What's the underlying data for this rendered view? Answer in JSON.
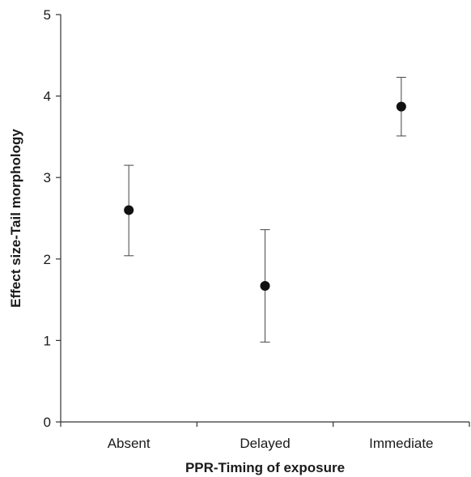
{
  "chart_data": {
    "type": "scatter",
    "title": "",
    "xlabel": "PPR-Timing of exposure",
    "ylabel": "Effect size-Tail morphology",
    "categories": [
      "Absent",
      "Delayed",
      "Immediate"
    ],
    "series": [
      {
        "values": [
          2.6,
          1.67,
          3.87
        ],
        "err_low": [
          2.04,
          0.98,
          3.51
        ],
        "err_high": [
          3.15,
          2.36,
          4.23
        ]
      }
    ],
    "ylim": [
      0,
      5
    ],
    "yticks": [
      0,
      1,
      2,
      3,
      4,
      5
    ],
    "yticklabels": [
      "0",
      "1",
      "2",
      "3",
      "4",
      "5"
    ],
    "grid": false,
    "legend": "none",
    "colors": {
      "marker": "#111111",
      "errorbar": "#555555",
      "axis": "#333333"
    }
  }
}
